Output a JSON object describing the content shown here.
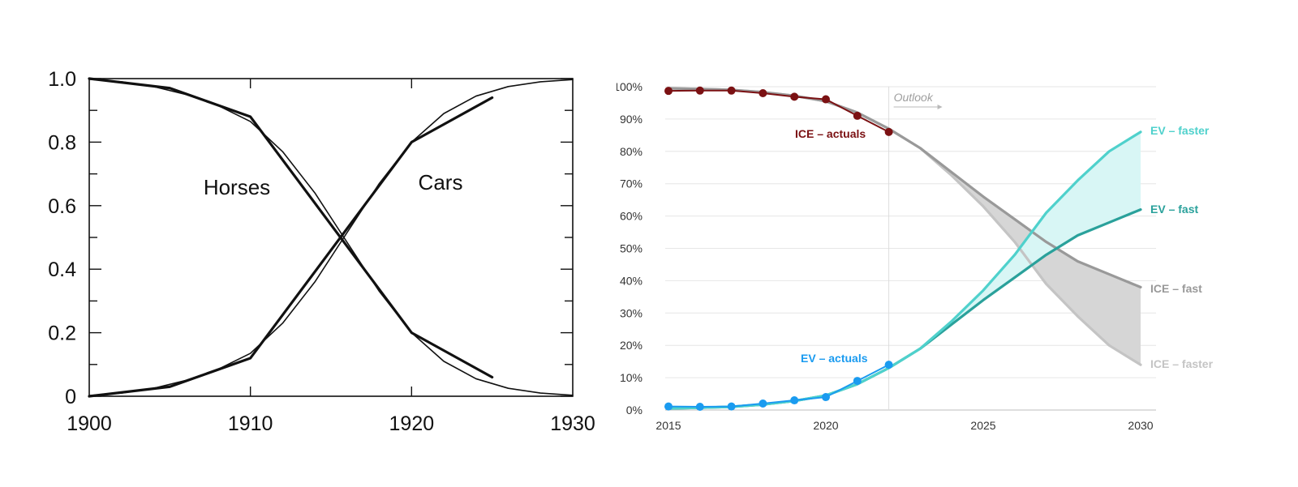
{
  "colors": {
    "left_line": "#111111",
    "ice_actual": "#7b1113",
    "ev_actual": "#1a9bf0",
    "ice_fast": "#999999",
    "ice_faster": "#c4c4c4",
    "ev_fast": "#2aa19b",
    "ev_faster": "#4fd1cc",
    "ice_band": "#d6d6d6",
    "ev_band": "#d8f6f5",
    "grid": "#e6e6e6",
    "outlook": "#9e9e9e"
  },
  "chart_data": [
    {
      "type": "line",
      "title": "",
      "xlabel": "",
      "ylabel": "",
      "xlim": [
        1900,
        1930
      ],
      "ylim": [
        0,
        1.0
      ],
      "x_ticks": [
        "1900",
        "1910",
        "1920",
        "1930"
      ],
      "y_ticks": [
        "0",
        "0.2",
        "0.4",
        "0.6",
        "0.8",
        "1.0"
      ],
      "grid": false,
      "annotations": [
        "Horses",
        "Cars"
      ],
      "series": [
        {
          "name": "Horses",
          "kind": "observed",
          "x": [
            1900,
            1905,
            1910,
            1920,
            1925
          ],
          "y": [
            1.0,
            0.97,
            0.88,
            0.2,
            0.06
          ]
        },
        {
          "name": "Horses",
          "kind": "logistic fit",
          "x": [
            1900,
            1902,
            1904,
            1906,
            1908,
            1910,
            1912,
            1914,
            1915.8,
            1918,
            1920,
            1922,
            1924,
            1926,
            1928,
            1930
          ],
          "y": [
            0.998,
            0.99,
            0.975,
            0.95,
            0.915,
            0.865,
            0.77,
            0.64,
            0.5,
            0.33,
            0.2,
            0.11,
            0.055,
            0.025,
            0.01,
            0.003
          ]
        },
        {
          "name": "Cars",
          "kind": "observed",
          "x": [
            1900,
            1905,
            1910,
            1920,
            1925
          ],
          "y": [
            0.0,
            0.03,
            0.12,
            0.8,
            0.94
          ]
        },
        {
          "name": "Cars",
          "kind": "logistic fit",
          "x": [
            1900,
            1902,
            1904,
            1906,
            1908,
            1910,
            1912,
            1914,
            1915.8,
            1918,
            1920,
            1922,
            1924,
            1926,
            1928,
            1930
          ],
          "y": [
            0.002,
            0.01,
            0.025,
            0.05,
            0.085,
            0.135,
            0.23,
            0.36,
            0.5,
            0.67,
            0.8,
            0.89,
            0.945,
            0.975,
            0.99,
            0.997
          ]
        }
      ]
    },
    {
      "type": "line",
      "title": "",
      "xlabel": "",
      "ylabel": "",
      "xlim": [
        2015,
        2030
      ],
      "ylim": [
        0,
        100
      ],
      "x_ticks": [
        "2015",
        "2020",
        "2025",
        "2030"
      ],
      "y_ticks": [
        "0%",
        "10%",
        "20%",
        "30%",
        "40%",
        "50%",
        "60%",
        "70%",
        "80%",
        "90%",
        "100%"
      ],
      "grid": true,
      "outlook_label": "Outlook",
      "outlook_x": 2022,
      "series": [
        {
          "name": "ICE – actuals",
          "kind": "actual",
          "x": [
            2015,
            2016,
            2017,
            2018,
            2019,
            2020,
            2021,
            2022
          ],
          "y": [
            98.7,
            98.8,
            98.8,
            98.0,
            96.9,
            96.1,
            91.0,
            86.0
          ]
        },
        {
          "name": "EV – actuals",
          "kind": "actual",
          "x": [
            2015,
            2016,
            2017,
            2018,
            2019,
            2020,
            2021,
            2022
          ],
          "y": [
            1.1,
            1.0,
            1.1,
            2.0,
            3.0,
            4.0,
            9.0,
            14.0
          ]
        },
        {
          "name": "ICE – fast",
          "kind": "outlook",
          "x": [
            2015,
            2016,
            2017,
            2018,
            2019,
            2020,
            2021,
            2022,
            2023,
            2024,
            2025,
            2026,
            2027,
            2028,
            2029,
            2030
          ],
          "y": [
            99.5,
            99.3,
            99.0,
            98.3,
            97.2,
            95.5,
            92.0,
            87.0,
            81.0,
            73.5,
            66.0,
            59.0,
            52.0,
            46.0,
            42.0,
            38.0
          ]
        },
        {
          "name": "ICE – faster",
          "kind": "outlook",
          "x": [
            2015,
            2016,
            2017,
            2018,
            2019,
            2020,
            2021,
            2022,
            2023,
            2024,
            2025,
            2026,
            2027,
            2028,
            2029,
            2030
          ],
          "y": [
            99.5,
            99.3,
            99.0,
            98.3,
            97.2,
            95.5,
            92.0,
            87.0,
            81.0,
            72.5,
            63.0,
            52.0,
            39.0,
            29.0,
            20.0,
            14.0
          ]
        },
        {
          "name": "EV – fast",
          "kind": "outlook",
          "x": [
            2015,
            2016,
            2017,
            2018,
            2019,
            2020,
            2021,
            2022,
            2023,
            2024,
            2025,
            2026,
            2027,
            2028,
            2029,
            2030
          ],
          "y": [
            0.5,
            0.7,
            1.0,
            1.7,
            2.8,
            4.5,
            8.0,
            13.0,
            19.0,
            26.5,
            34.0,
            41.0,
            48.0,
            54.0,
            58.0,
            62.0
          ]
        },
        {
          "name": "EV – faster",
          "kind": "outlook",
          "x": [
            2015,
            2016,
            2017,
            2018,
            2019,
            2020,
            2021,
            2022,
            2023,
            2024,
            2025,
            2026,
            2027,
            2028,
            2029,
            2030
          ],
          "y": [
            0.5,
            0.7,
            1.0,
            1.7,
            2.8,
            4.5,
            8.0,
            13.0,
            19.0,
            27.5,
            37.0,
            48.0,
            61.0,
            71.0,
            80.0,
            86.0
          ]
        }
      ]
    }
  ]
}
